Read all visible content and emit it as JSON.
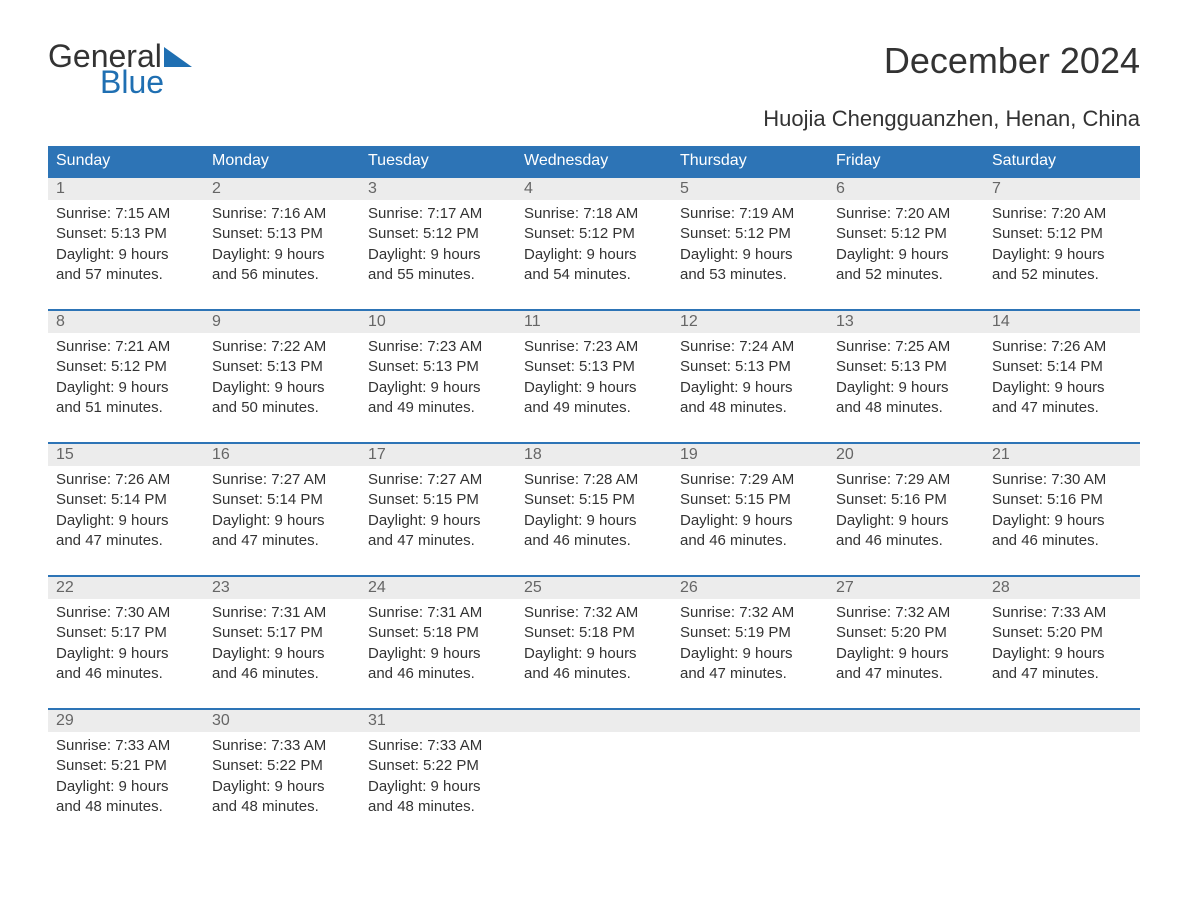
{
  "logo": {
    "word1": "General",
    "word2": "Blue",
    "tri_color": "#1f6fb2"
  },
  "title": "December 2024",
  "location": "Huojia Chengguanzhen, Henan, China",
  "colors": {
    "header_bg": "#2d74b6",
    "header_text": "#ffffff",
    "week_border": "#2d74b6",
    "daynum_bg": "#ececec",
    "daynum_text": "#666666",
    "body_text": "#333333",
    "page_bg": "#ffffff",
    "logo_blue": "#1f6fb2"
  },
  "typography": {
    "title_size": 36,
    "location_size": 22,
    "weekday_size": 16,
    "body_size": 15
  },
  "weekdays": [
    "Sunday",
    "Monday",
    "Tuesday",
    "Wednesday",
    "Thursday",
    "Friday",
    "Saturday"
  ],
  "weeks": [
    [
      {
        "day": "1",
        "sunrise": "Sunrise: 7:15 AM",
        "sunset": "Sunset: 5:13 PM",
        "dl1": "Daylight: 9 hours",
        "dl2": "and 57 minutes."
      },
      {
        "day": "2",
        "sunrise": "Sunrise: 7:16 AM",
        "sunset": "Sunset: 5:13 PM",
        "dl1": "Daylight: 9 hours",
        "dl2": "and 56 minutes."
      },
      {
        "day": "3",
        "sunrise": "Sunrise: 7:17 AM",
        "sunset": "Sunset: 5:12 PM",
        "dl1": "Daylight: 9 hours",
        "dl2": "and 55 minutes."
      },
      {
        "day": "4",
        "sunrise": "Sunrise: 7:18 AM",
        "sunset": "Sunset: 5:12 PM",
        "dl1": "Daylight: 9 hours",
        "dl2": "and 54 minutes."
      },
      {
        "day": "5",
        "sunrise": "Sunrise: 7:19 AM",
        "sunset": "Sunset: 5:12 PM",
        "dl1": "Daylight: 9 hours",
        "dl2": "and 53 minutes."
      },
      {
        "day": "6",
        "sunrise": "Sunrise: 7:20 AM",
        "sunset": "Sunset: 5:12 PM",
        "dl1": "Daylight: 9 hours",
        "dl2": "and 52 minutes."
      },
      {
        "day": "7",
        "sunrise": "Sunrise: 7:20 AM",
        "sunset": "Sunset: 5:12 PM",
        "dl1": "Daylight: 9 hours",
        "dl2": "and 52 minutes."
      }
    ],
    [
      {
        "day": "8",
        "sunrise": "Sunrise: 7:21 AM",
        "sunset": "Sunset: 5:12 PM",
        "dl1": "Daylight: 9 hours",
        "dl2": "and 51 minutes."
      },
      {
        "day": "9",
        "sunrise": "Sunrise: 7:22 AM",
        "sunset": "Sunset: 5:13 PM",
        "dl1": "Daylight: 9 hours",
        "dl2": "and 50 minutes."
      },
      {
        "day": "10",
        "sunrise": "Sunrise: 7:23 AM",
        "sunset": "Sunset: 5:13 PM",
        "dl1": "Daylight: 9 hours",
        "dl2": "and 49 minutes."
      },
      {
        "day": "11",
        "sunrise": "Sunrise: 7:23 AM",
        "sunset": "Sunset: 5:13 PM",
        "dl1": "Daylight: 9 hours",
        "dl2": "and 49 minutes."
      },
      {
        "day": "12",
        "sunrise": "Sunrise: 7:24 AM",
        "sunset": "Sunset: 5:13 PM",
        "dl1": "Daylight: 9 hours",
        "dl2": "and 48 minutes."
      },
      {
        "day": "13",
        "sunrise": "Sunrise: 7:25 AM",
        "sunset": "Sunset: 5:13 PM",
        "dl1": "Daylight: 9 hours",
        "dl2": "and 48 minutes."
      },
      {
        "day": "14",
        "sunrise": "Sunrise: 7:26 AM",
        "sunset": "Sunset: 5:14 PM",
        "dl1": "Daylight: 9 hours",
        "dl2": "and 47 minutes."
      }
    ],
    [
      {
        "day": "15",
        "sunrise": "Sunrise: 7:26 AM",
        "sunset": "Sunset: 5:14 PM",
        "dl1": "Daylight: 9 hours",
        "dl2": "and 47 minutes."
      },
      {
        "day": "16",
        "sunrise": "Sunrise: 7:27 AM",
        "sunset": "Sunset: 5:14 PM",
        "dl1": "Daylight: 9 hours",
        "dl2": "and 47 minutes."
      },
      {
        "day": "17",
        "sunrise": "Sunrise: 7:27 AM",
        "sunset": "Sunset: 5:15 PM",
        "dl1": "Daylight: 9 hours",
        "dl2": "and 47 minutes."
      },
      {
        "day": "18",
        "sunrise": "Sunrise: 7:28 AM",
        "sunset": "Sunset: 5:15 PM",
        "dl1": "Daylight: 9 hours",
        "dl2": "and 46 minutes."
      },
      {
        "day": "19",
        "sunrise": "Sunrise: 7:29 AM",
        "sunset": "Sunset: 5:15 PM",
        "dl1": "Daylight: 9 hours",
        "dl2": "and 46 minutes."
      },
      {
        "day": "20",
        "sunrise": "Sunrise: 7:29 AM",
        "sunset": "Sunset: 5:16 PM",
        "dl1": "Daylight: 9 hours",
        "dl2": "and 46 minutes."
      },
      {
        "day": "21",
        "sunrise": "Sunrise: 7:30 AM",
        "sunset": "Sunset: 5:16 PM",
        "dl1": "Daylight: 9 hours",
        "dl2": "and 46 minutes."
      }
    ],
    [
      {
        "day": "22",
        "sunrise": "Sunrise: 7:30 AM",
        "sunset": "Sunset: 5:17 PM",
        "dl1": "Daylight: 9 hours",
        "dl2": "and 46 minutes."
      },
      {
        "day": "23",
        "sunrise": "Sunrise: 7:31 AM",
        "sunset": "Sunset: 5:17 PM",
        "dl1": "Daylight: 9 hours",
        "dl2": "and 46 minutes."
      },
      {
        "day": "24",
        "sunrise": "Sunrise: 7:31 AM",
        "sunset": "Sunset: 5:18 PM",
        "dl1": "Daylight: 9 hours",
        "dl2": "and 46 minutes."
      },
      {
        "day": "25",
        "sunrise": "Sunrise: 7:32 AM",
        "sunset": "Sunset: 5:18 PM",
        "dl1": "Daylight: 9 hours",
        "dl2": "and 46 minutes."
      },
      {
        "day": "26",
        "sunrise": "Sunrise: 7:32 AM",
        "sunset": "Sunset: 5:19 PM",
        "dl1": "Daylight: 9 hours",
        "dl2": "and 47 minutes."
      },
      {
        "day": "27",
        "sunrise": "Sunrise: 7:32 AM",
        "sunset": "Sunset: 5:20 PM",
        "dl1": "Daylight: 9 hours",
        "dl2": "and 47 minutes."
      },
      {
        "day": "28",
        "sunrise": "Sunrise: 7:33 AM",
        "sunset": "Sunset: 5:20 PM",
        "dl1": "Daylight: 9 hours",
        "dl2": "and 47 minutes."
      }
    ],
    [
      {
        "day": "29",
        "sunrise": "Sunrise: 7:33 AM",
        "sunset": "Sunset: 5:21 PM",
        "dl1": "Daylight: 9 hours",
        "dl2": "and 48 minutes."
      },
      {
        "day": "30",
        "sunrise": "Sunrise: 7:33 AM",
        "sunset": "Sunset: 5:22 PM",
        "dl1": "Daylight: 9 hours",
        "dl2": "and 48 minutes."
      },
      {
        "day": "31",
        "sunrise": "Sunrise: 7:33 AM",
        "sunset": "Sunset: 5:22 PM",
        "dl1": "Daylight: 9 hours",
        "dl2": "and 48 minutes."
      },
      null,
      null,
      null,
      null
    ]
  ]
}
